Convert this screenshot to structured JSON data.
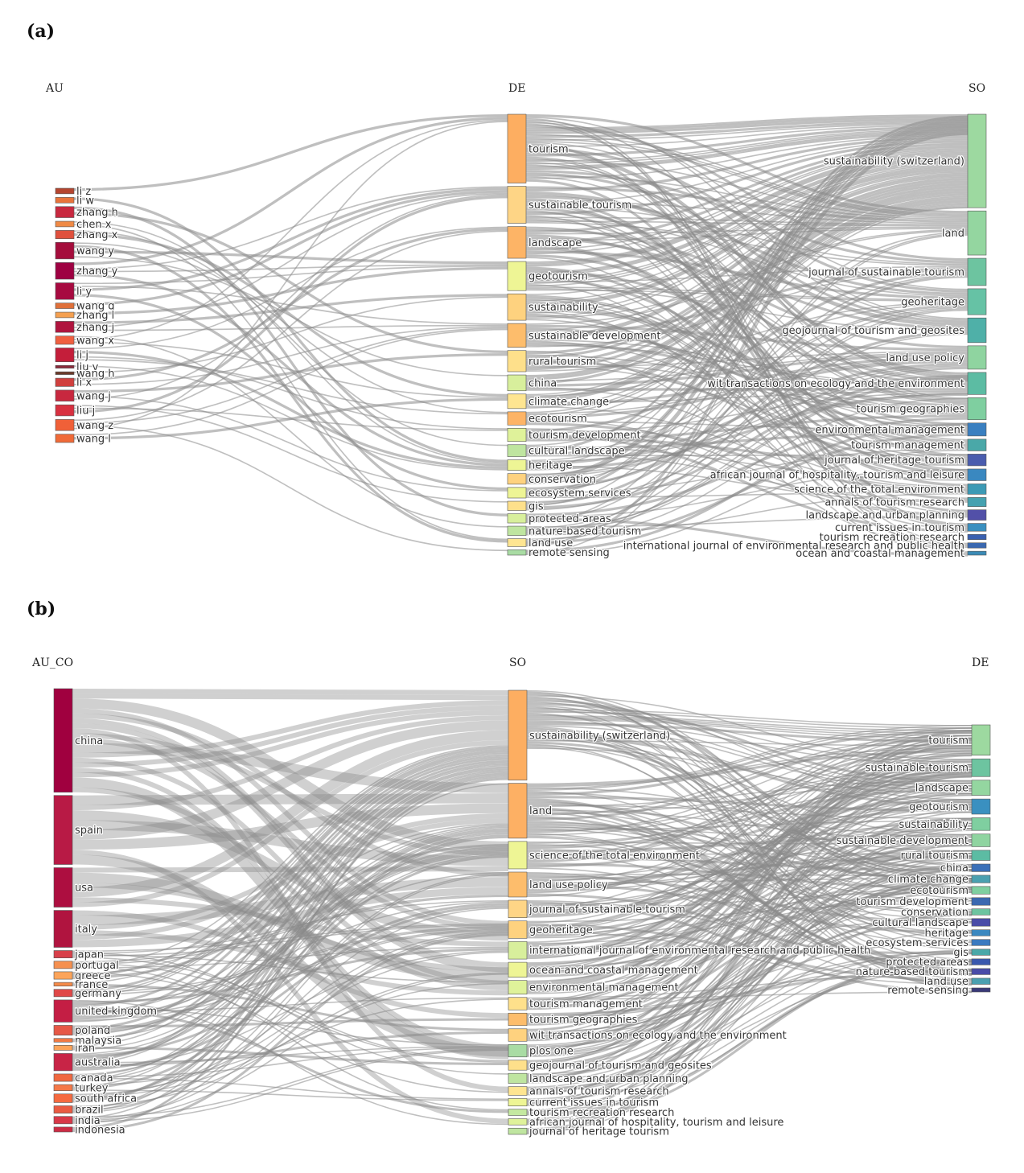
{
  "figure": {
    "panels": [
      {
        "id": "a",
        "label": "(a)",
        "columns": [
          "AU",
          "DE",
          "SO"
        ],
        "nodes": {
          "AU": [
            {
              "name": "li z",
              "value": 1,
              "color": "#b5452f"
            },
            {
              "name": "li w",
              "value": 1,
              "color": "#e8743b"
            },
            {
              "name": "zhang h",
              "value": 2,
              "color": "#c8283f"
            },
            {
              "name": "chen x",
              "value": 1,
              "color": "#f08a45"
            },
            {
              "name": "zhang x",
              "value": 1.5,
              "color": "#e0503d"
            },
            {
              "name": "wang y",
              "value": 3,
              "color": "#a50d3c"
            },
            {
              "name": "zhang y",
              "value": 3,
              "color": "#9e0142"
            },
            {
              "name": "li y",
              "value": 3,
              "color": "#a70a40"
            },
            {
              "name": "wang q",
              "value": 1,
              "color": "#e0703a"
            },
            {
              "name": "zhang l",
              "value": 1,
              "color": "#f5a050"
            },
            {
              "name": "zhang j",
              "value": 2,
              "color": "#b0143e"
            },
            {
              "name": "wang x",
              "value": 1.5,
              "color": "#f06040"
            },
            {
              "name": "li j",
              "value": 2.5,
              "color": "#c41e3a"
            },
            {
              "name": "liu y",
              "value": 0.5,
              "color": "#8a2a3a"
            },
            {
              "name": "wang h",
              "value": 0.5,
              "color": "#6b3a2a"
            },
            {
              "name": "li x",
              "value": 1.5,
              "color": "#d0403e"
            },
            {
              "name": "wang j",
              "value": 2,
              "color": "#c8283f"
            },
            {
              "name": "liu j",
              "value": 2,
              "color": "#d83040"
            },
            {
              "name": "wang z",
              "value": 2,
              "color": "#f06038"
            },
            {
              "name": "wang l",
              "value": 1.5,
              "color": "#f06a38"
            }
          ],
          "DE": [
            {
              "name": "tourism",
              "value": 26,
              "color": "#fdae61"
            },
            {
              "name": "sustainable tourism",
              "value": 14,
              "color": "#fed586"
            },
            {
              "name": "landscape",
              "value": 12,
              "color": "#fdb466"
            },
            {
              "name": "geotourism",
              "value": 11,
              "color": "#eef595"
            },
            {
              "name": "sustainability",
              "value": 10,
              "color": "#fed27f"
            },
            {
              "name": "sustainable development",
              "value": 9,
              "color": "#fdbd6c"
            },
            {
              "name": "rural tourism",
              "value": 8,
              "color": "#fee08b"
            },
            {
              "name": "china",
              "value": 6,
              "color": "#d8ef9c"
            },
            {
              "name": "climate change",
              "value": 5.5,
              "color": "#fee591"
            },
            {
              "name": "ecotourism",
              "value": 5,
              "color": "#fdb466"
            },
            {
              "name": "tourism development",
              "value": 5,
              "color": "#dff29a"
            },
            {
              "name": "cultural landscape",
              "value": 4.5,
              "color": "#bfe5a0"
            },
            {
              "name": "heritage",
              "value": 4,
              "color": "#eef595"
            },
            {
              "name": "conservation",
              "value": 4,
              "color": "#fed27f"
            },
            {
              "name": "ecosystem services",
              "value": 4,
              "color": "#eef595"
            },
            {
              "name": "gis",
              "value": 3.5,
              "color": "#fee08b"
            },
            {
              "name": "protected areas",
              "value": 3.5,
              "color": "#d8ef9c"
            },
            {
              "name": "nature-based tourism",
              "value": 3.5,
              "color": "#bfe5a0"
            },
            {
              "name": "land use",
              "value": 3,
              "color": "#fee591"
            },
            {
              "name": "remote sensing",
              "value": 2,
              "color": "#a9dca4"
            }
          ],
          "SO": [
            {
              "name": "sustainability (switzerland)",
              "value": 36,
              "color": "#9dd9a0"
            },
            {
              "name": "land",
              "value": 17,
              "color": "#94d6a0"
            },
            {
              "name": "journal of sustainable tourism",
              "value": 10.5,
              "color": "#6dc4a0"
            },
            {
              "name": "geoheritage",
              "value": 10,
              "color": "#66c2a5"
            },
            {
              "name": "geojournal of tourism and geosites",
              "value": 9.5,
              "color": "#4fb0a8"
            },
            {
              "name": "land use policy",
              "value": 9,
              "color": "#8fd4a0"
            },
            {
              "name": "wit transactions on ecology and the environment",
              "value": 8.5,
              "color": "#5cbca3"
            },
            {
              "name": "tourism geographies",
              "value": 8.5,
              "color": "#7fcfa0"
            },
            {
              "name": "environmental management",
              "value": 5,
              "color": "#3a7fc0"
            },
            {
              "name": "tourism management",
              "value": 4.5,
              "color": "#4aa8a8"
            },
            {
              "name": "journal of heritage tourism",
              "value": 4.5,
              "color": "#4a5cae"
            },
            {
              "name": "african journal of hospitality, tourism and leisure",
              "value": 4.5,
              "color": "#3a88c0"
            },
            {
              "name": "science of the total environment",
              "value": 4,
              "color": "#3c9ab5"
            },
            {
              "name": "annals of tourism research",
              "value": 3.5,
              "color": "#45a2b0"
            },
            {
              "name": "landscape and urban planning",
              "value": 4,
              "color": "#5250a8"
            },
            {
              "name": "current issues in tourism",
              "value": 3,
              "color": "#3a90c0"
            },
            {
              "name": "tourism recreation research",
              "value": 2,
              "color": "#3a60b0"
            },
            {
              "name": "international journal of environmental research and public health",
              "value": 2,
              "color": "#3a68b0"
            },
            {
              "name": "ocean and coastal management",
              "value": 1.5,
              "color": "#3a8ab5"
            }
          ]
        }
      },
      {
        "id": "b",
        "label": "(b)",
        "columns": [
          "AU_CO",
          "SO",
          "DE"
        ],
        "nodes": {
          "AU_CO": [
            {
              "name": "china",
              "value": 42,
              "color": "#a0003f"
            },
            {
              "name": "spain",
              "value": 28,
              "color": "#b81a45"
            },
            {
              "name": "usa",
              "value": 16,
              "color": "#ad0e40"
            },
            {
              "name": "italy",
              "value": 15,
              "color": "#b0143f"
            },
            {
              "name": "japan",
              "value": 3,
              "color": "#d8404a"
            },
            {
              "name": "portugal",
              "value": 3,
              "color": "#f59050"
            },
            {
              "name": "greece",
              "value": 3,
              "color": "#fca45a"
            },
            {
              "name": "france",
              "value": 1.5,
              "color": "#f58a48"
            },
            {
              "name": "germany",
              "value": 3,
              "color": "#e04848"
            },
            {
              "name": "united kingdom",
              "value": 9,
              "color": "#c41e44"
            },
            {
              "name": "poland",
              "value": 4,
              "color": "#e65846"
            },
            {
              "name": "malaysia",
              "value": 1.5,
              "color": "#f07a45"
            },
            {
              "name": "iran",
              "value": 2,
              "color": "#fca45a"
            },
            {
              "name": "australia",
              "value": 7,
              "color": "#c82446"
            },
            {
              "name": "canada",
              "value": 3,
              "color": "#f06840"
            },
            {
              "name": "turkey",
              "value": 2.5,
              "color": "#f57848"
            },
            {
              "name": "south africa",
              "value": 3.5,
              "color": "#f56a40"
            },
            {
              "name": "brazil",
              "value": 3,
              "color": "#ea5a42"
            },
            {
              "name": "india",
              "value": 3,
              "color": "#d83848"
            },
            {
              "name": "indonesia",
              "value": 2,
              "color": "#cc2c44"
            }
          ],
          "SO": [
            {
              "name": "sustainability (switzerland)",
              "value": 36,
              "color": "#fdae61"
            },
            {
              "name": "land",
              "value": 22,
              "color": "#fdb064"
            },
            {
              "name": "science of the total environment",
              "value": 11,
              "color": "#eef595"
            },
            {
              "name": "land use policy",
              "value": 10,
              "color": "#fdbd6c"
            },
            {
              "name": "journal of sustainable tourism",
              "value": 7,
              "color": "#fed586"
            },
            {
              "name": "geoheritage",
              "value": 7,
              "color": "#fed27f"
            },
            {
              "name": "international journal of environmental research and public health",
              "value": 7,
              "color": "#d8ef9c"
            },
            {
              "name": "ocean and coastal management",
              "value": 6,
              "color": "#eef595"
            },
            {
              "name": "environmental management",
              "value": 5.5,
              "color": "#dff29a"
            },
            {
              "name": "tourism management",
              "value": 5,
              "color": "#fee08b"
            },
            {
              "name": "tourism geographies",
              "value": 5,
              "color": "#fdbd6c"
            },
            {
              "name": "wit transactions on ecology and the environment",
              "value": 5,
              "color": "#fed27f"
            },
            {
              "name": "plos one",
              "value": 5,
              "color": "#a9dca4"
            },
            {
              "name": "geojournal of tourism and geosites",
              "value": 4,
              "color": "#fee08b"
            },
            {
              "name": "landscape and urban planning",
              "value": 4,
              "color": "#bfe5a0"
            },
            {
              "name": "annals of tourism research",
              "value": 3.5,
              "color": "#fee591"
            },
            {
              "name": "current issues in tourism",
              "value": 3,
              "color": "#eef595"
            },
            {
              "name": "tourism recreation research",
              "value": 2.5,
              "color": "#c4e8a0"
            },
            {
              "name": "african journal of hospitality, tourism and leisure",
              "value": 2.5,
              "color": "#dff29a"
            },
            {
              "name": "journal of heritage tourism",
              "value": 2.5,
              "color": "#bfe5a0"
            }
          ],
          "DE": [
            {
              "name": "tourism",
              "value": 6,
              "color": "#9dd9a0"
            },
            {
              "name": "sustainable tourism",
              "value": 3.5,
              "color": "#6dc4a0"
            },
            {
              "name": "landscape",
              "value": 3,
              "color": "#94d6a0"
            },
            {
              "name": "geotourism",
              "value": 3,
              "color": "#3a90c0"
            },
            {
              "name": "sustainability",
              "value": 2.5,
              "color": "#7fcfa0"
            },
            {
              "name": "sustainable development",
              "value": 2.5,
              "color": "#8fd4a0"
            },
            {
              "name": "rural tourism",
              "value": 2,
              "color": "#5cbca3"
            },
            {
              "name": "china",
              "value": 1.5,
              "color": "#3a70b8"
            },
            {
              "name": "climate change",
              "value": 1.5,
              "color": "#4aa0b0"
            },
            {
              "name": "ecotourism",
              "value": 1.5,
              "color": "#7fcfa0"
            },
            {
              "name": "tourism development",
              "value": 1.5,
              "color": "#3a68b0"
            },
            {
              "name": "conservation",
              "value": 1.2,
              "color": "#6dc4a0"
            },
            {
              "name": "cultural landscape",
              "value": 1.5,
              "color": "#4a4ca8"
            },
            {
              "name": "heritage",
              "value": 1.2,
              "color": "#3a88c0"
            },
            {
              "name": "ecosystem services",
              "value": 1.2,
              "color": "#3a7ac0"
            },
            {
              "name": "gis",
              "value": 1.2,
              "color": "#4aa8a8"
            },
            {
              "name": "protected areas",
              "value": 1.2,
              "color": "#3a58ae"
            },
            {
              "name": "nature-based tourism",
              "value": 1.2,
              "color": "#4a4ca8"
            },
            {
              "name": "land use",
              "value": 1.2,
              "color": "#4aa0b0"
            },
            {
              "name": "remote sensing",
              "value": 0.8,
              "color": "#3a3a78"
            }
          ]
        }
      }
    ],
    "link_color": "#8a8a8a"
  }
}
